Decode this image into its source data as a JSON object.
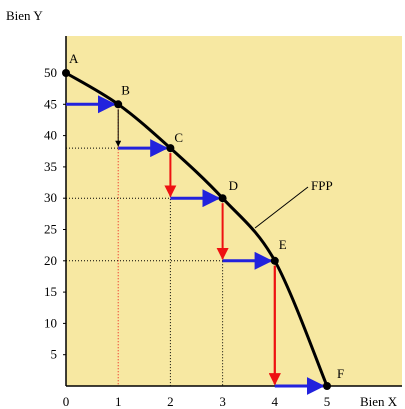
{
  "chart_data": {
    "type": "line",
    "ylabel": "Bien Y",
    "xlabel": "Bien X",
    "xlim": [
      0,
      5
    ],
    "ylim": [
      0,
      50
    ],
    "x_ticks": [
      "0",
      "1",
      "2",
      "3",
      "4",
      "5"
    ],
    "y_ticks": [
      "5",
      "10",
      "15",
      "20",
      "25",
      "30",
      "35",
      "40",
      "45",
      "50"
    ],
    "series": [
      {
        "name": "FPP",
        "x": [
          0,
          1,
          2,
          3,
          4,
          5
        ],
        "y": [
          50,
          45,
          38,
          30,
          20,
          0
        ]
      }
    ],
    "point_labels": [
      "A",
      "B",
      "C",
      "D",
      "E",
      "F"
    ],
    "curve_label": "FPP",
    "colors": {
      "plot_background": "#f7e8a2",
      "curve": "#000000",
      "horizontal_arrows": "#2222dd",
      "vertical_arrows": "#ee1111",
      "first_vertical_arrow": "#000000",
      "guide_horizontal": "#000000",
      "guide_vertical_x1": "#ee1111",
      "guide_vertical": "#000000"
    }
  }
}
